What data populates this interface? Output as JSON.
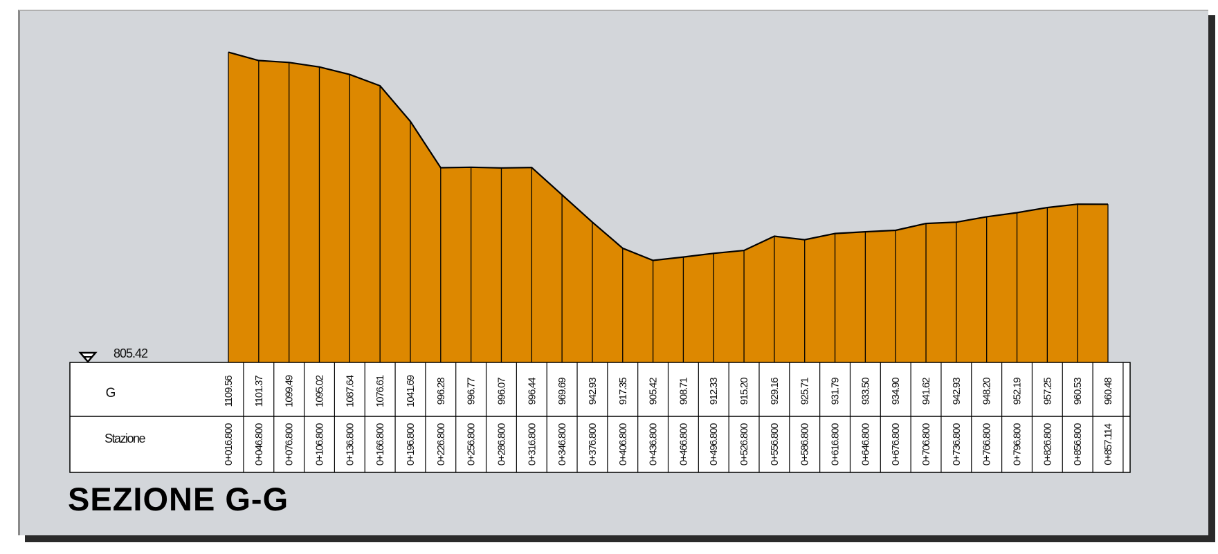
{
  "title": "SEZIONE G-G",
  "reference": {
    "label": "805.42",
    "value": 805.42
  },
  "row_labels": {
    "ground": "G",
    "station": "Stazione"
  },
  "colors": {
    "fill": "#dd8800",
    "line": "#000000",
    "background": "#d3d6da",
    "table_background": "#ffffff"
  },
  "chart_data": {
    "type": "area",
    "title": "SEZIONE G-G",
    "xlabel": "Stazione",
    "ylabel": "G",
    "datum": 805.42,
    "ylim": [
      805.42,
      1120
    ],
    "stations": [
      "0+016.800",
      "0+046.800",
      "0+076.800",
      "0+106.800",
      "0+136.800",
      "0+166.800",
      "0+196.800",
      "0+226.800",
      "0+256.800",
      "0+286.800",
      "0+316.800",
      "0+346.800",
      "0+376.800",
      "0+406.800",
      "0+436.800",
      "0+466.800",
      "0+496.800",
      "0+526.800",
      "0+556.800",
      "0+586.800",
      "0+616.800",
      "0+646.800",
      "0+676.800",
      "0+706.800",
      "0+736.800",
      "0+766.800",
      "0+796.800",
      "0+826.800",
      "0+856.800",
      "0+857.114"
    ],
    "elevations": [
      1109.56,
      1101.37,
      1099.49,
      1095.02,
      1087.64,
      1076.61,
      1041.69,
      996.28,
      996.77,
      996.07,
      996.44,
      969.69,
      942.93,
      917.35,
      905.42,
      908.71,
      912.33,
      915.2,
      929.16,
      925.71,
      931.79,
      933.5,
      934.9,
      941.62,
      942.93,
      948.2,
      952.19,
      957.25,
      960.53,
      960.48
    ],
    "elevation_labels": [
      "1109.56",
      "1101.37",
      "1099.49",
      "1095.02",
      "1087.64",
      "1076.61",
      "1041.69",
      "996.28",
      "996.77",
      "996.07",
      "996.44",
      "969.69",
      "942.93",
      "917.35",
      "905.42",
      "908.71",
      "912.33",
      "915.20",
      "929.16",
      "925.71",
      "931.79",
      "933.50",
      "934.90",
      "941.62",
      "942.93",
      "948.20",
      "952.19",
      "957.25",
      "960.53",
      "960.48"
    ]
  }
}
